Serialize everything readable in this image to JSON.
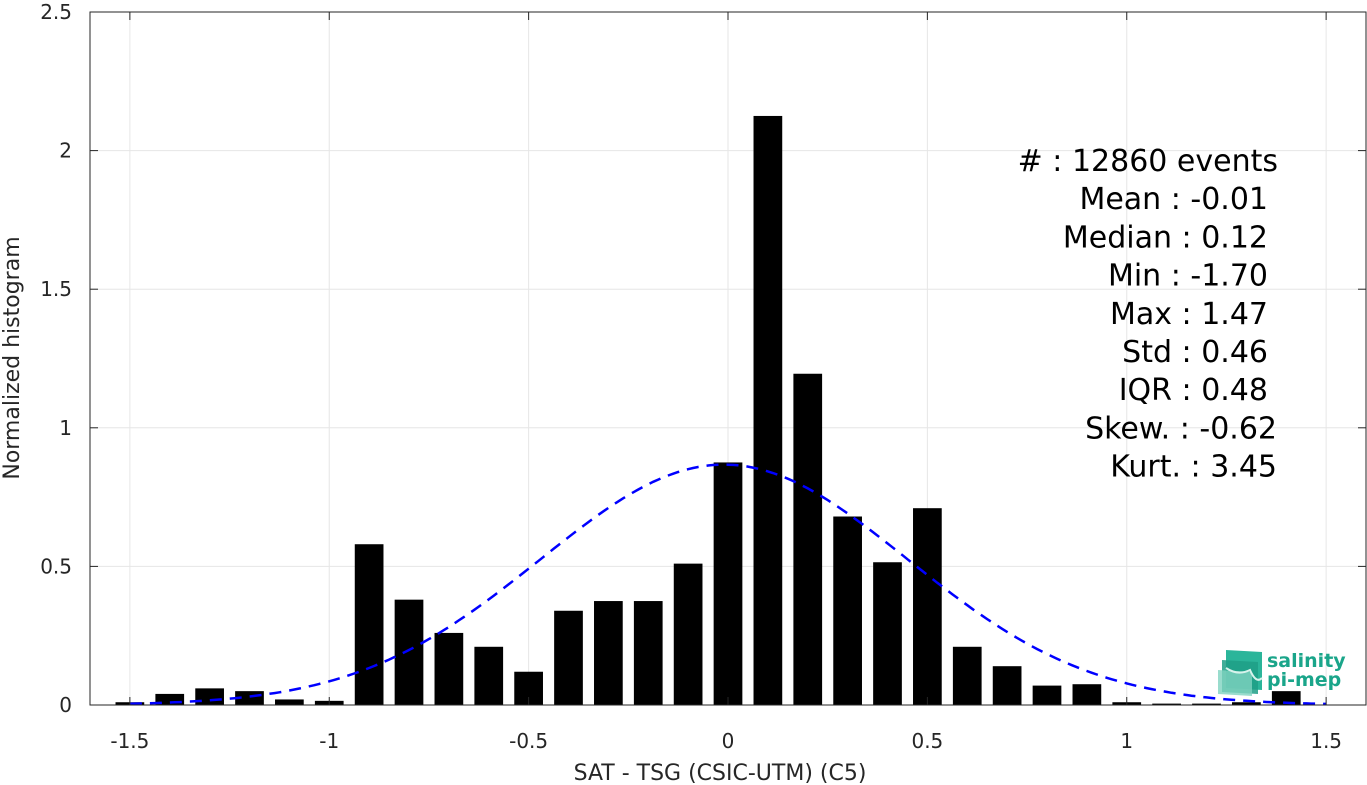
{
  "chart_data": {
    "type": "bar",
    "xlabel": "SAT - TSG (CSIC-UTM) (C5)",
    "ylabel": "Normalized histogram",
    "xlim": [
      -1.6,
      1.6
    ],
    "ylim": [
      0,
      2.5
    ],
    "xticks": [
      -1.5,
      -1,
      -0.5,
      0,
      0.5,
      1,
      1.5
    ],
    "xtick_labels": [
      "-1.5",
      "-1",
      "-0.5",
      "0",
      "0.5",
      "1",
      "1.5"
    ],
    "yticks": [
      0,
      0.5,
      1,
      1.5,
      2,
      2.5
    ],
    "ytick_labels": [
      "0",
      "0.5",
      "1",
      "1.5",
      "2",
      "2.5"
    ],
    "grid": true,
    "bin_width": 0.1,
    "bar_color": "#000000",
    "x": [
      -1.5,
      -1.4,
      -1.3,
      -1.2,
      -1.1,
      -1.0,
      -0.9,
      -0.8,
      -0.7,
      -0.6,
      -0.5,
      -0.4,
      -0.3,
      -0.2,
      -0.1,
      0.0,
      0.1,
      0.2,
      0.3,
      0.4,
      0.5,
      0.6,
      0.7,
      0.8,
      0.9,
      1.0,
      1.1,
      1.2,
      1.3,
      1.4
    ],
    "values": [
      0.01,
      0.04,
      0.06,
      0.05,
      0.02,
      0.015,
      0.58,
      0.38,
      0.26,
      0.21,
      0.12,
      0.34,
      0.375,
      0.375,
      0.51,
      0.875,
      2.125,
      1.195,
      0.68,
      0.515,
      0.71,
      0.21,
      0.14,
      0.07,
      0.075,
      0.01,
      0.005,
      0.005,
      0.01,
      0.05
    ],
    "fit": {
      "type": "gaussian",
      "mean": -0.01,
      "std": 0.46,
      "color": "#0000ff",
      "style": "dashed"
    },
    "stats": [
      "#  : 12860 events",
      "Mean : -0.01",
      "Median : 0.12",
      "Min : -1.70",
      "Max : 1.47",
      "Std : 0.46",
      "IQR : 0.48",
      "Skew. : -0.62",
      "Kurt. : 3.45"
    ]
  },
  "logo": {
    "line1": "salinity",
    "line2": "pi-mep",
    "color": "#1aa58a"
  }
}
